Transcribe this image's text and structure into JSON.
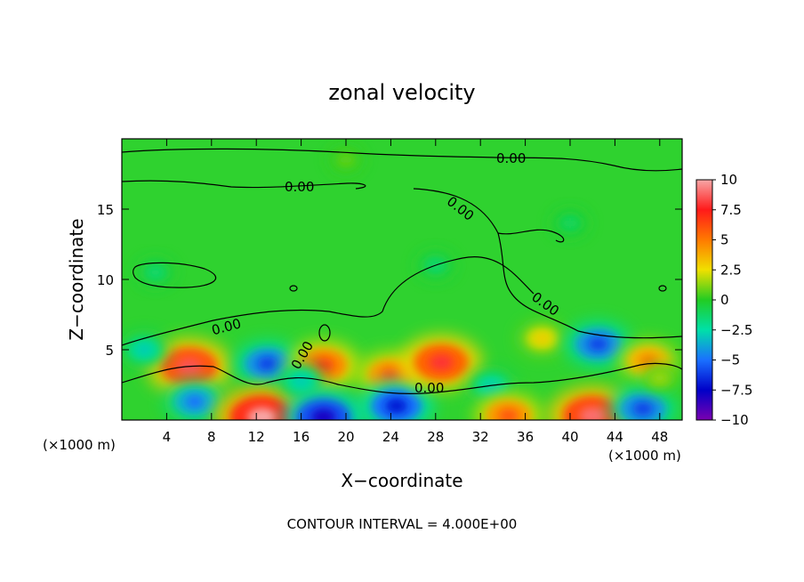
{
  "chart_data": {
    "type": "heatmap",
    "title": "zonal velocity",
    "xlabel": "X−coordinate",
    "ylabel": "Z−coordinate",
    "x_unit_left": "(×1000 m)",
    "x_unit_right": "(×1000 m)",
    "xlim": [
      0,
      50
    ],
    "ylim": [
      0,
      20
    ],
    "x_ticks": [
      4,
      8,
      12,
      16,
      20,
      24,
      28,
      32,
      36,
      40,
      44,
      48
    ],
    "x_tick_labels": [
      "4",
      "8",
      "12",
      "16",
      "20",
      "24",
      "28",
      "32",
      "36",
      "40",
      "44",
      "48"
    ],
    "y_ticks": [
      5,
      10,
      15
    ],
    "y_tick_labels": [
      "5",
      "10",
      "15"
    ],
    "colorbar": {
      "range": [
        -10,
        10
      ],
      "levels": [
        10,
        7.5,
        5,
        2.5,
        0,
        -2.5,
        -5,
        -7.5,
        -10
      ],
      "labels": [
        "10",
        "7.5",
        "5",
        "2.5",
        "0",
        "−2.5",
        "−5",
        "−7.5",
        "−10"
      ],
      "colors": [
        "#f7a6a6",
        "#ff1a1a",
        "#ff7a00",
        "#f0e000",
        "#22cc22",
        "#00e0a8",
        "#1a70ff",
        "#0000c8",
        "#7a00b0"
      ]
    },
    "contour_labels": [
      "0.00",
      "0.00",
      "0.00",
      "0.00",
      "0.00",
      "0.00",
      "0.00"
    ],
    "footer": "CONTOUR INTERVAL = 4.000E+00",
    "features": [
      {
        "x": 6,
        "z": 3.8,
        "value": 8.5
      },
      {
        "x": 2,
        "z": 5.0,
        "value": -3
      },
      {
        "x": 6.5,
        "z": 1.3,
        "value": -5
      },
      {
        "x": 13,
        "z": 4.0,
        "value": -6
      },
      {
        "x": 12.5,
        "z": 0.2,
        "value": 10
      },
      {
        "x": 18,
        "z": 3.9,
        "value": 6.5
      },
      {
        "x": 16,
        "z": 2.8,
        "value": -3
      },
      {
        "x": 18,
        "z": 0.2,
        "value": -8
      },
      {
        "x": 24,
        "z": 3.2,
        "value": 6
      },
      {
        "x": 24.5,
        "z": 1.0,
        "value": -7
      },
      {
        "x": 28.5,
        "z": 4.1,
        "value": 8
      },
      {
        "x": 33,
        "z": 2.4,
        "value": -3
      },
      {
        "x": 34.5,
        "z": 0.3,
        "value": 6
      },
      {
        "x": 37.5,
        "z": 5.8,
        "value": 3
      },
      {
        "x": 42.5,
        "z": 5.4,
        "value": -6
      },
      {
        "x": 42,
        "z": 0.3,
        "value": 9
      },
      {
        "x": 47,
        "z": 4.2,
        "value": 5
      },
      {
        "x": 46.5,
        "z": 0.8,
        "value": -6
      },
      {
        "x": 48,
        "z": 3.0,
        "value": 1.5
      },
      {
        "x": 3,
        "z": 10.5,
        "value": -1.5
      },
      {
        "x": 28,
        "z": 11.0,
        "value": -1.5
      },
      {
        "x": 40,
        "z": 14.0,
        "value": -1.2
      },
      {
        "x": 20,
        "z": 18.5,
        "value": 0.8
      }
    ]
  }
}
